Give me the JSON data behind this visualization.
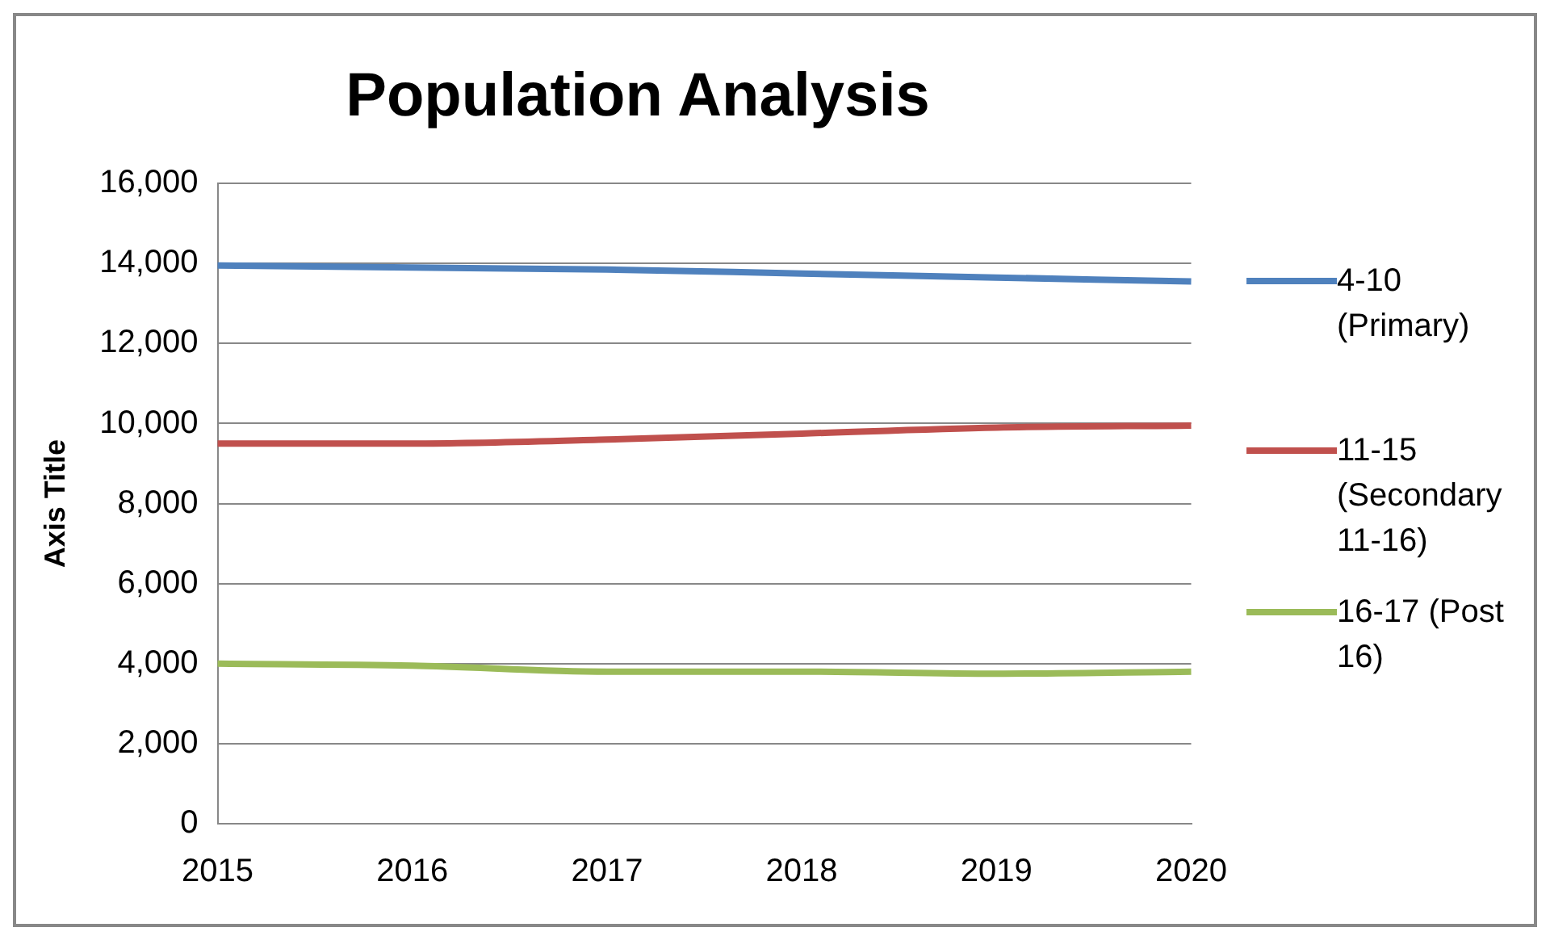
{
  "chart_data": {
    "type": "line",
    "title": "Population Analysis",
    "ylabel": "Axis Title",
    "categories": [
      "2015",
      "2016",
      "2017",
      "2018",
      "2019",
      "2020"
    ],
    "series": [
      {
        "name": "4-10 (Primary)",
        "color": "#4f81bd",
        "values": [
          13950,
          13900,
          13850,
          13750,
          13650,
          13550
        ]
      },
      {
        "name": "11-15 (Secondary 11-16)",
        "color": "#c0504d",
        "values": [
          9500,
          9500,
          9600,
          9750,
          9900,
          9950
        ]
      },
      {
        "name": "16-17 (Post 16)",
        "color": "#9bbb59",
        "values": [
          4000,
          3950,
          3800,
          3800,
          3750,
          3800
        ]
      }
    ],
    "ylim": [
      0,
      16000
    ],
    "yticks": [
      0,
      {
        "value": 2000,
        "label": "2,000"
      },
      {
        "value": 4000,
        "label": "4,000"
      },
      {
        "value": 6000,
        "label": "6,000"
      },
      {
        "value": 8000,
        "label": "8,000"
      },
      {
        "value": 10000,
        "label": "10,000"
      },
      {
        "value": 12000,
        "label": "12,000"
      },
      {
        "value": 14000,
        "label": "14,000"
      },
      {
        "value": 16000,
        "label": "16,000"
      }
    ],
    "grid": "y",
    "legend": "right",
    "marker": "none"
  }
}
